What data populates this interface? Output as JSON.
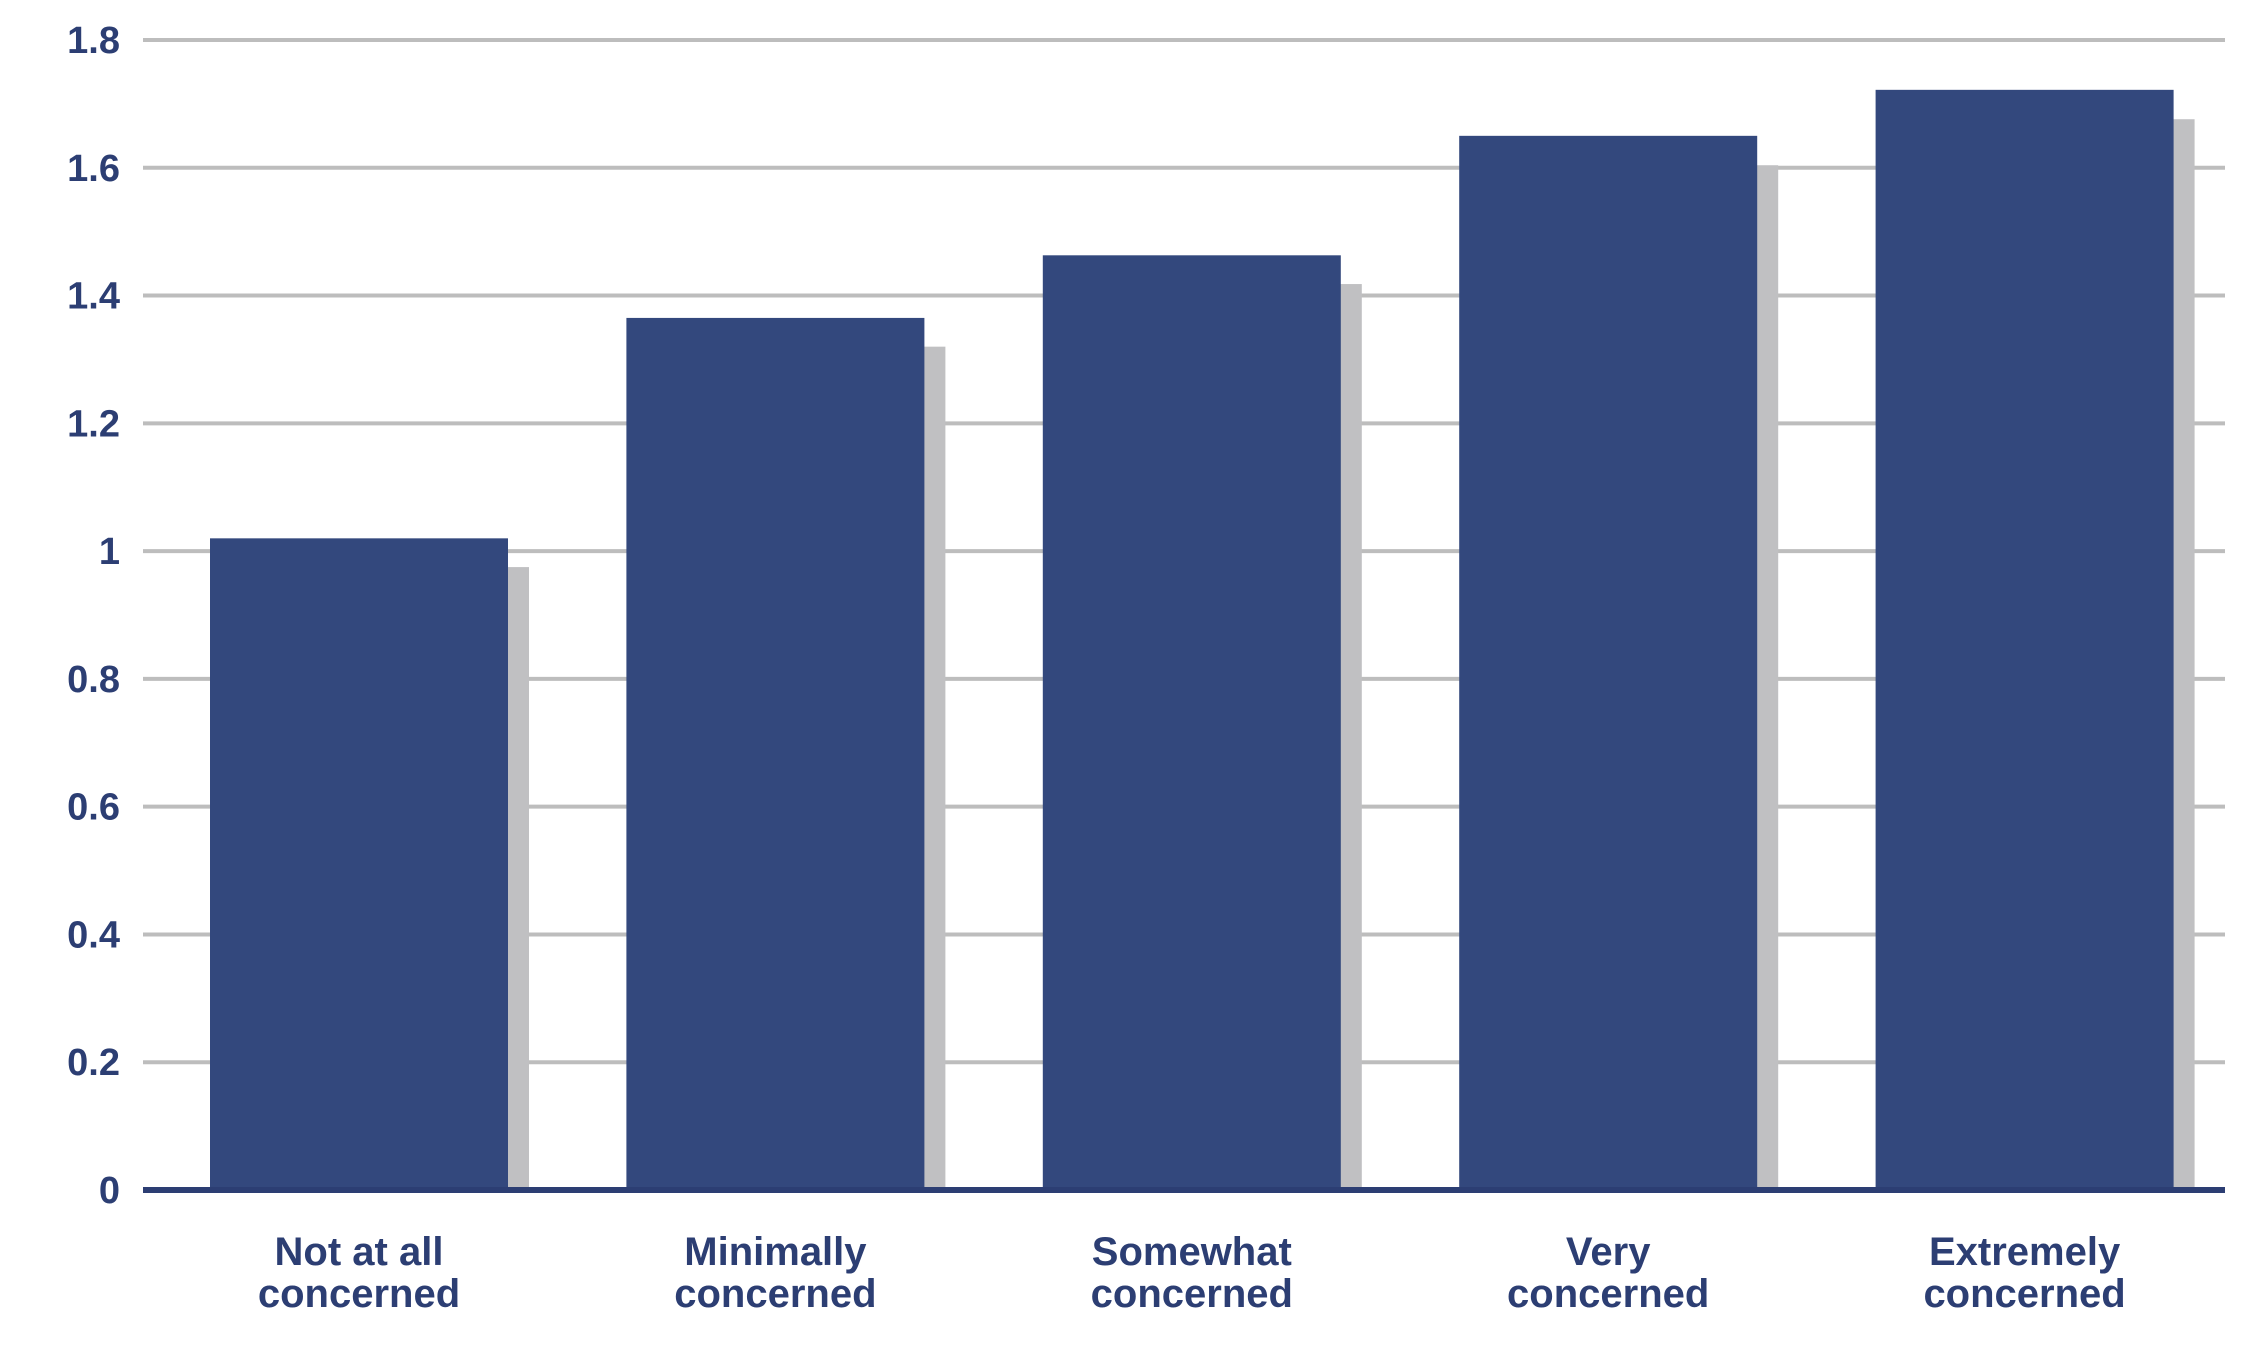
{
  "chart_data": {
    "type": "bar",
    "categories": [
      [
        "Not at all",
        "concerned"
      ],
      [
        "Minimally",
        "concerned"
      ],
      [
        "Somewhat",
        "concerned"
      ],
      [
        "Very",
        "concerned"
      ],
      [
        "Extremely",
        "concerned"
      ]
    ],
    "series": [
      {
        "values": [
          1.02,
          1.365,
          1.463,
          1.65,
          1.722
        ],
        "color": "#33487d"
      },
      {
        "values": [
          0.975,
          1.32,
          1.418,
          1.604,
          1.676
        ],
        "color": "#c0c0c2"
      }
    ],
    "yticks": [
      "0",
      "0.2",
      "0.4",
      "0.6",
      "0.8",
      "1",
      "1.2",
      "1.4",
      "1.6",
      "1.8"
    ],
    "ylim": [
      0,
      1.8
    ],
    "grid": true,
    "title": "",
    "xlabel": "",
    "ylabel": ""
  }
}
